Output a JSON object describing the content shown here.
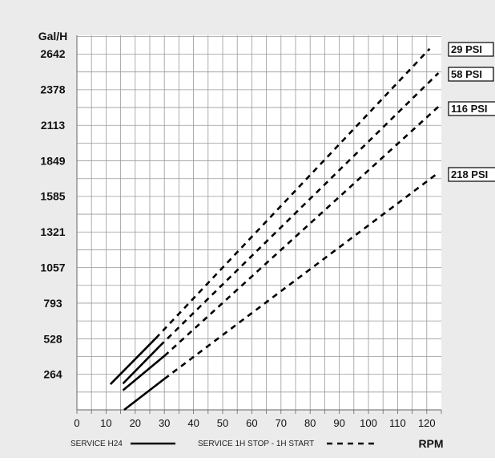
{
  "chart_data": {
    "type": "line",
    "ylabel": "Gal/H",
    "xlabel": "RPM",
    "xlim": [
      0,
      125
    ],
    "ylim": [
      0,
      2780
    ],
    "x_ticks": [
      "0",
      "10",
      "20",
      "30",
      "40",
      "50",
      "60",
      "70",
      "80",
      "90",
      "100",
      "110",
      "120"
    ],
    "y_ticks": [
      "264",
      "528",
      "793",
      "1057",
      "1321",
      "1585",
      "1849",
      "2113",
      "2378",
      "2642"
    ],
    "grid": true,
    "series": [
      {
        "name": "29 PSI",
        "solid": [
          [
            11.5,
            190
          ],
          [
            27,
            530
          ]
        ],
        "dashed": [
          [
            27,
            530
          ],
          [
            121,
            2680
          ]
        ]
      },
      {
        "name": "58 PSI",
        "solid": [
          [
            15.8,
            195
          ],
          [
            28.5,
            475
          ]
        ],
        "dashed": [
          [
            28.5,
            475
          ],
          [
            124,
            2500
          ]
        ]
      },
      {
        "name": "116 PSI",
        "solid": [
          [
            15.8,
            145
          ],
          [
            30,
            400
          ]
        ],
        "dashed": [
          [
            30,
            400
          ],
          [
            124,
            2250
          ]
        ]
      },
      {
        "name": "218 PSI",
        "solid": [
          [
            16.2,
            0
          ],
          [
            30,
            230
          ]
        ],
        "dashed": [
          [
            30,
            230
          ],
          [
            124,
            1760
          ]
        ]
      }
    ],
    "legend": {
      "solid_label": "SERVICE H24",
      "dashed_label": "SERVICE 1H STOP - 1H START"
    }
  },
  "colors": {
    "background": "#ebebeb",
    "plot_bg": "#ffffff",
    "grid": "#9a9a9a",
    "line": "#000000"
  }
}
